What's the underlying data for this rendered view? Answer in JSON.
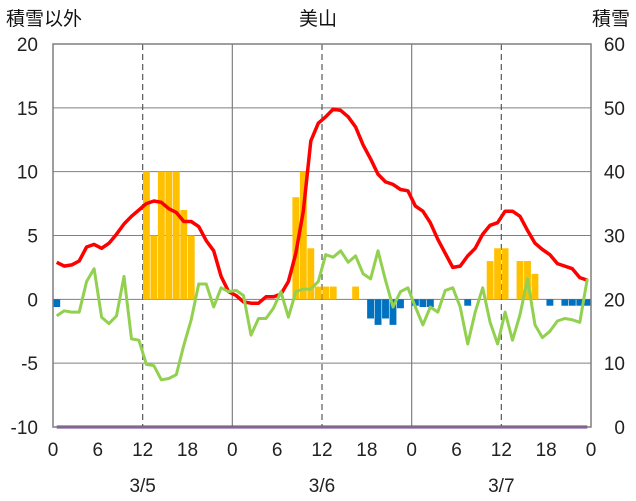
{
  "chart_data": {
    "type": "bar+line",
    "title": "美山",
    "left_axis_label": "積雪以外",
    "right_axis_label": "積雪",
    "left_ylim": [
      -10,
      20
    ],
    "right_ylim": [
      0,
      60
    ],
    "left_ticks": [
      "20",
      "15",
      "10",
      "5",
      "0",
      "-5",
      "-10"
    ],
    "right_ticks": [
      "60",
      "50",
      "40",
      "30",
      "20",
      "10",
      "0"
    ],
    "x_hours": [
      0,
      1,
      2,
      3,
      4,
      5,
      6,
      7,
      8,
      9,
      10,
      11,
      12,
      13,
      14,
      15,
      16,
      17,
      18,
      19,
      20,
      21,
      22,
      23,
      24,
      25,
      26,
      27,
      28,
      29,
      30,
      31,
      32,
      33,
      34,
      35,
      36,
      37,
      38,
      39,
      40,
      41,
      42,
      43,
      44,
      45,
      46,
      47,
      48,
      49,
      50,
      51,
      52,
      53,
      54,
      55,
      56,
      57,
      58,
      59,
      60,
      61,
      62,
      63,
      64,
      65,
      66,
      67,
      68,
      69,
      70,
      71
    ],
    "x_tick_labels": [
      "0",
      "6",
      "12",
      "18",
      "0",
      "6",
      "12",
      "18",
      "0",
      "6",
      "12",
      "18",
      "0"
    ],
    "x_tick_hours": [
      0,
      6,
      12,
      18,
      24,
      30,
      36,
      42,
      48,
      54,
      60,
      66,
      72
    ],
    "date_labels": [
      {
        "label": "3/5",
        "hour": 12
      },
      {
        "label": "3/6",
        "hour": 36
      },
      {
        "label": "3/7",
        "hour": 60
      }
    ],
    "grid": "dashed at 12h and solid at day boundaries",
    "series": [
      {
        "kind": "bar",
        "axis": "left",
        "color": "#ffc000",
        "values": [
          0,
          0,
          0,
          0,
          0,
          0,
          0,
          0,
          0,
          0,
          0,
          0,
          10,
          5,
          10,
          10,
          10,
          7,
          5,
          0,
          0,
          0,
          0,
          0,
          0,
          0,
          0,
          0,
          0,
          0,
          0,
          0,
          8,
          10,
          4,
          1,
          1,
          1,
          0,
          0,
          1,
          0,
          0,
          0,
          0,
          0,
          0,
          0,
          0,
          0,
          0,
          0,
          0,
          0,
          0,
          0,
          0,
          0,
          3,
          4,
          4,
          0,
          3,
          3,
          2,
          0,
          0,
          0,
          0,
          0,
          0,
          0
        ]
      },
      {
        "kind": "bar",
        "axis": "left",
        "color": "#0070c0",
        "values": [
          -0.6,
          0,
          0,
          0,
          0,
          0,
          0,
          0,
          0,
          0,
          0,
          0,
          0,
          0,
          0,
          0,
          0,
          0,
          0,
          0,
          0,
          0,
          0,
          0,
          0,
          0,
          0,
          0,
          0,
          0,
          0,
          0,
          0,
          0,
          0,
          0,
          0,
          0,
          0,
          0,
          0,
          0,
          -1.5,
          -2,
          -1.5,
          -2,
          -0.7,
          0,
          -0.5,
          -0.6,
          -0.6,
          0,
          0,
          0,
          0,
          -0.5,
          0,
          0,
          0,
          0,
          0,
          0,
          0,
          0,
          0,
          0,
          -0.5,
          0,
          -0.5,
          -0.5,
          -0.5,
          -0.5
        ]
      },
      {
        "kind": "line",
        "axis": "left",
        "color": "#ff0000",
        "values": [
          2.9,
          2.6,
          2.7,
          3.0,
          4.1,
          4.3,
          4.0,
          4.4,
          5.1,
          5.9,
          6.5,
          7.0,
          7.5,
          7.7,
          7.6,
          7.1,
          6.8,
          6.1,
          6.1,
          5.7,
          4.6,
          3.8,
          1.8,
          0.6,
          0.3,
          -0.2,
          -0.3,
          -0.3,
          0.2,
          0.2,
          0.4,
          1.4,
          3.6,
          6.9,
          12.4,
          13.8,
          14.3,
          14.9,
          14.8,
          14.3,
          13.5,
          12.1,
          11.0,
          9.8,
          9.2,
          9.0,
          8.6,
          8.5,
          7.3,
          6.9,
          6.0,
          4.7,
          3.6,
          2.5,
          2.6,
          3.4,
          4.0,
          5.1,
          5.8,
          6.0,
          6.9,
          6.9,
          6.5,
          5.4,
          4.4,
          3.9,
          3.5,
          2.8,
          2.6,
          2.4,
          1.7,
          1.5
        ]
      },
      {
        "kind": "line",
        "axis": "left",
        "color": "#92d050",
        "values": [
          -1.3,
          -0.9,
          -1.0,
          -1.0,
          1.4,
          2.4,
          -1.4,
          -1.9,
          -1.3,
          1.8,
          -3.1,
          -3.2,
          -5.1,
          -5.2,
          -6.3,
          -6.2,
          -5.9,
          -3.6,
          -1.6,
          1.2,
          1.2,
          -0.6,
          0.9,
          0.6,
          0.7,
          0.3,
          -2.8,
          -1.5,
          -1.5,
          -0.7,
          0.6,
          -1.4,
          0.6,
          0.8,
          0.8,
          1.4,
          3.5,
          3.3,
          3.8,
          2.9,
          3.4,
          2.0,
          1.6,
          3.8,
          1.5,
          -0.6,
          0.6,
          0.9,
          -0.6,
          -2.0,
          -0.6,
          -1.0,
          0.7,
          0.9,
          -0.6,
          -3.5,
          -1.0,
          0.9,
          -1.8,
          -3.5,
          -1.0,
          -3.2,
          -1.2,
          1.6,
          -2.0,
          -3.0,
          -2.5,
          -1.7,
          -1.5,
          -1.6,
          -1.8,
          1.6
        ]
      },
      {
        "kind": "line",
        "axis": "right",
        "color": "#7030a0",
        "values": [
          0,
          0,
          0,
          0,
          0,
          0,
          0,
          0,
          0,
          0,
          0,
          0,
          0,
          0,
          0,
          0,
          0,
          0,
          0,
          0,
          0,
          0,
          0,
          0,
          0,
          0,
          0,
          0,
          0,
          0,
          0,
          0,
          0,
          0,
          0,
          0,
          0,
          0,
          0,
          0,
          0,
          0,
          0,
          0,
          0,
          0,
          0,
          0,
          0,
          0,
          0,
          0,
          0,
          0,
          0,
          0,
          0,
          0,
          0,
          0,
          0,
          0,
          0,
          0,
          0,
          0,
          0,
          0,
          0,
          0,
          0,
          0
        ]
      }
    ]
  }
}
